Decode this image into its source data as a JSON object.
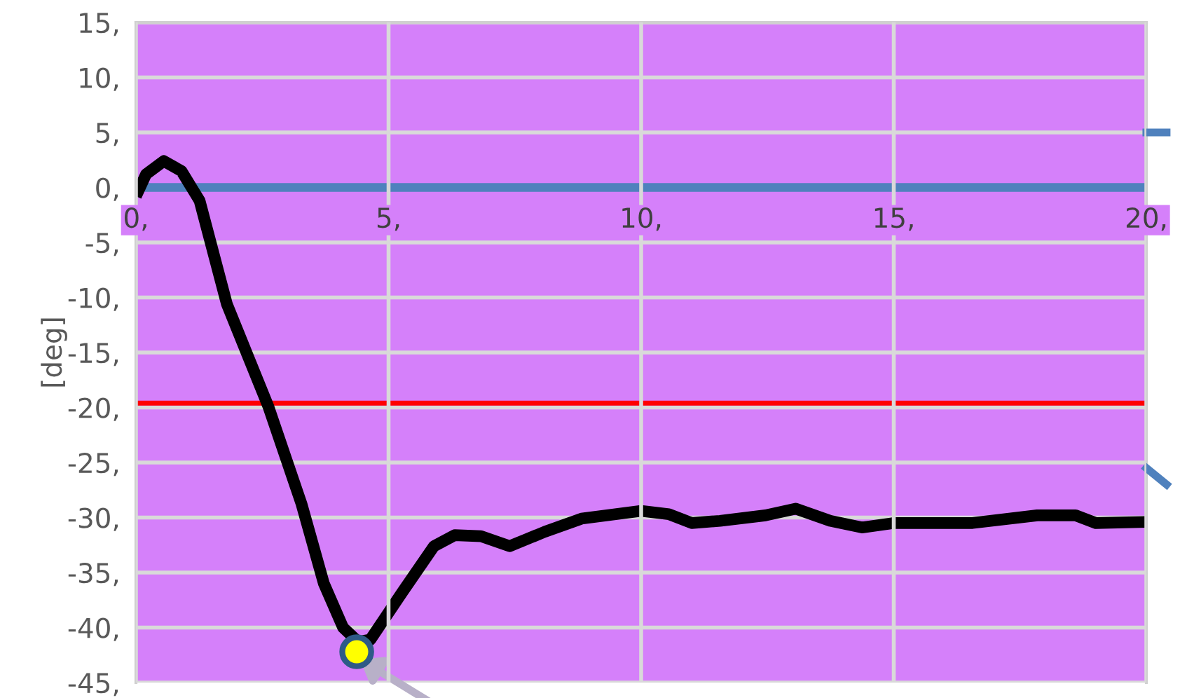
{
  "chart_data": {
    "type": "line",
    "ylabel": "[deg]",
    "xlim": [
      0,
      20
    ],
    "ylim": [
      -45,
      15
    ],
    "xticks": [
      {
        "value": 0,
        "label": "0,"
      },
      {
        "value": 5,
        "label": "5,"
      },
      {
        "value": 10,
        "label": "10,"
      },
      {
        "value": 15,
        "label": "15,"
      },
      {
        "value": 20,
        "label": "20,"
      }
    ],
    "yticks": [
      {
        "value": -45,
        "label": "-45,"
      },
      {
        "value": -40,
        "label": "-40,"
      },
      {
        "value": -35,
        "label": "-35,"
      },
      {
        "value": -30,
        "label": "-30,"
      },
      {
        "value": -25,
        "label": "-25,"
      },
      {
        "value": -20,
        "label": "-20,"
      },
      {
        "value": -15,
        "label": "-15,"
      },
      {
        "value": -10,
        "label": "-10,"
      },
      {
        "value": -5,
        "label": "-5,"
      },
      {
        "value": 0,
        "label": "0,"
      },
      {
        "value": 5,
        "label": "5,"
      },
      {
        "value": 10,
        "label": "10,"
      },
      {
        "value": 15,
        "label": "15,"
      }
    ],
    "grid": true,
    "marker": "none",
    "line_style": "solid",
    "series": [
      {
        "color": "#000000",
        "x": [
          0,
          0.2,
          0.55,
          0.9,
          1.1,
          1.26,
          1.8,
          2.62,
          3.28,
          3.72,
          4.1,
          4.4,
          4.64,
          5.27,
          5.9,
          6.31,
          6.83,
          7.4,
          8.09,
          8.82,
          10.0,
          10.55,
          11.0,
          11.56,
          12.46,
          13.06,
          13.74,
          14.37,
          15.0,
          15.66,
          16.56,
          17.84,
          18.6,
          19.0,
          20.0
        ],
        "values": [
          -0.8,
          1.2,
          2.4,
          1.5,
          0.0,
          -1.2,
          -10.6,
          -19.9,
          -28.8,
          -36.0,
          -40.0,
          -41.3,
          -41.1,
          -36.8,
          -32.6,
          -31.6,
          -31.7,
          -32.6,
          -31.3,
          -30.1,
          -29.4,
          -29.7,
          -30.5,
          -30.3,
          -29.8,
          -29.2,
          -30.3,
          -30.9,
          -30.5,
          -30.5,
          -30.5,
          -29.8,
          -29.8,
          -30.5,
          -30.4
        ]
      },
      {
        "color": "#4f81bd",
        "x": [
          0,
          20
        ],
        "values": [
          0,
          0
        ]
      },
      {
        "color": "#ff0000",
        "x": [
          0,
          20
        ],
        "values": [
          -19.6,
          -19.6
        ]
      },
      {
        "type": "scatter",
        "color": "#ffff00",
        "marker": "circle",
        "x": [
          4.37
        ],
        "values": [
          -42.2
        ]
      }
    ]
  }
}
